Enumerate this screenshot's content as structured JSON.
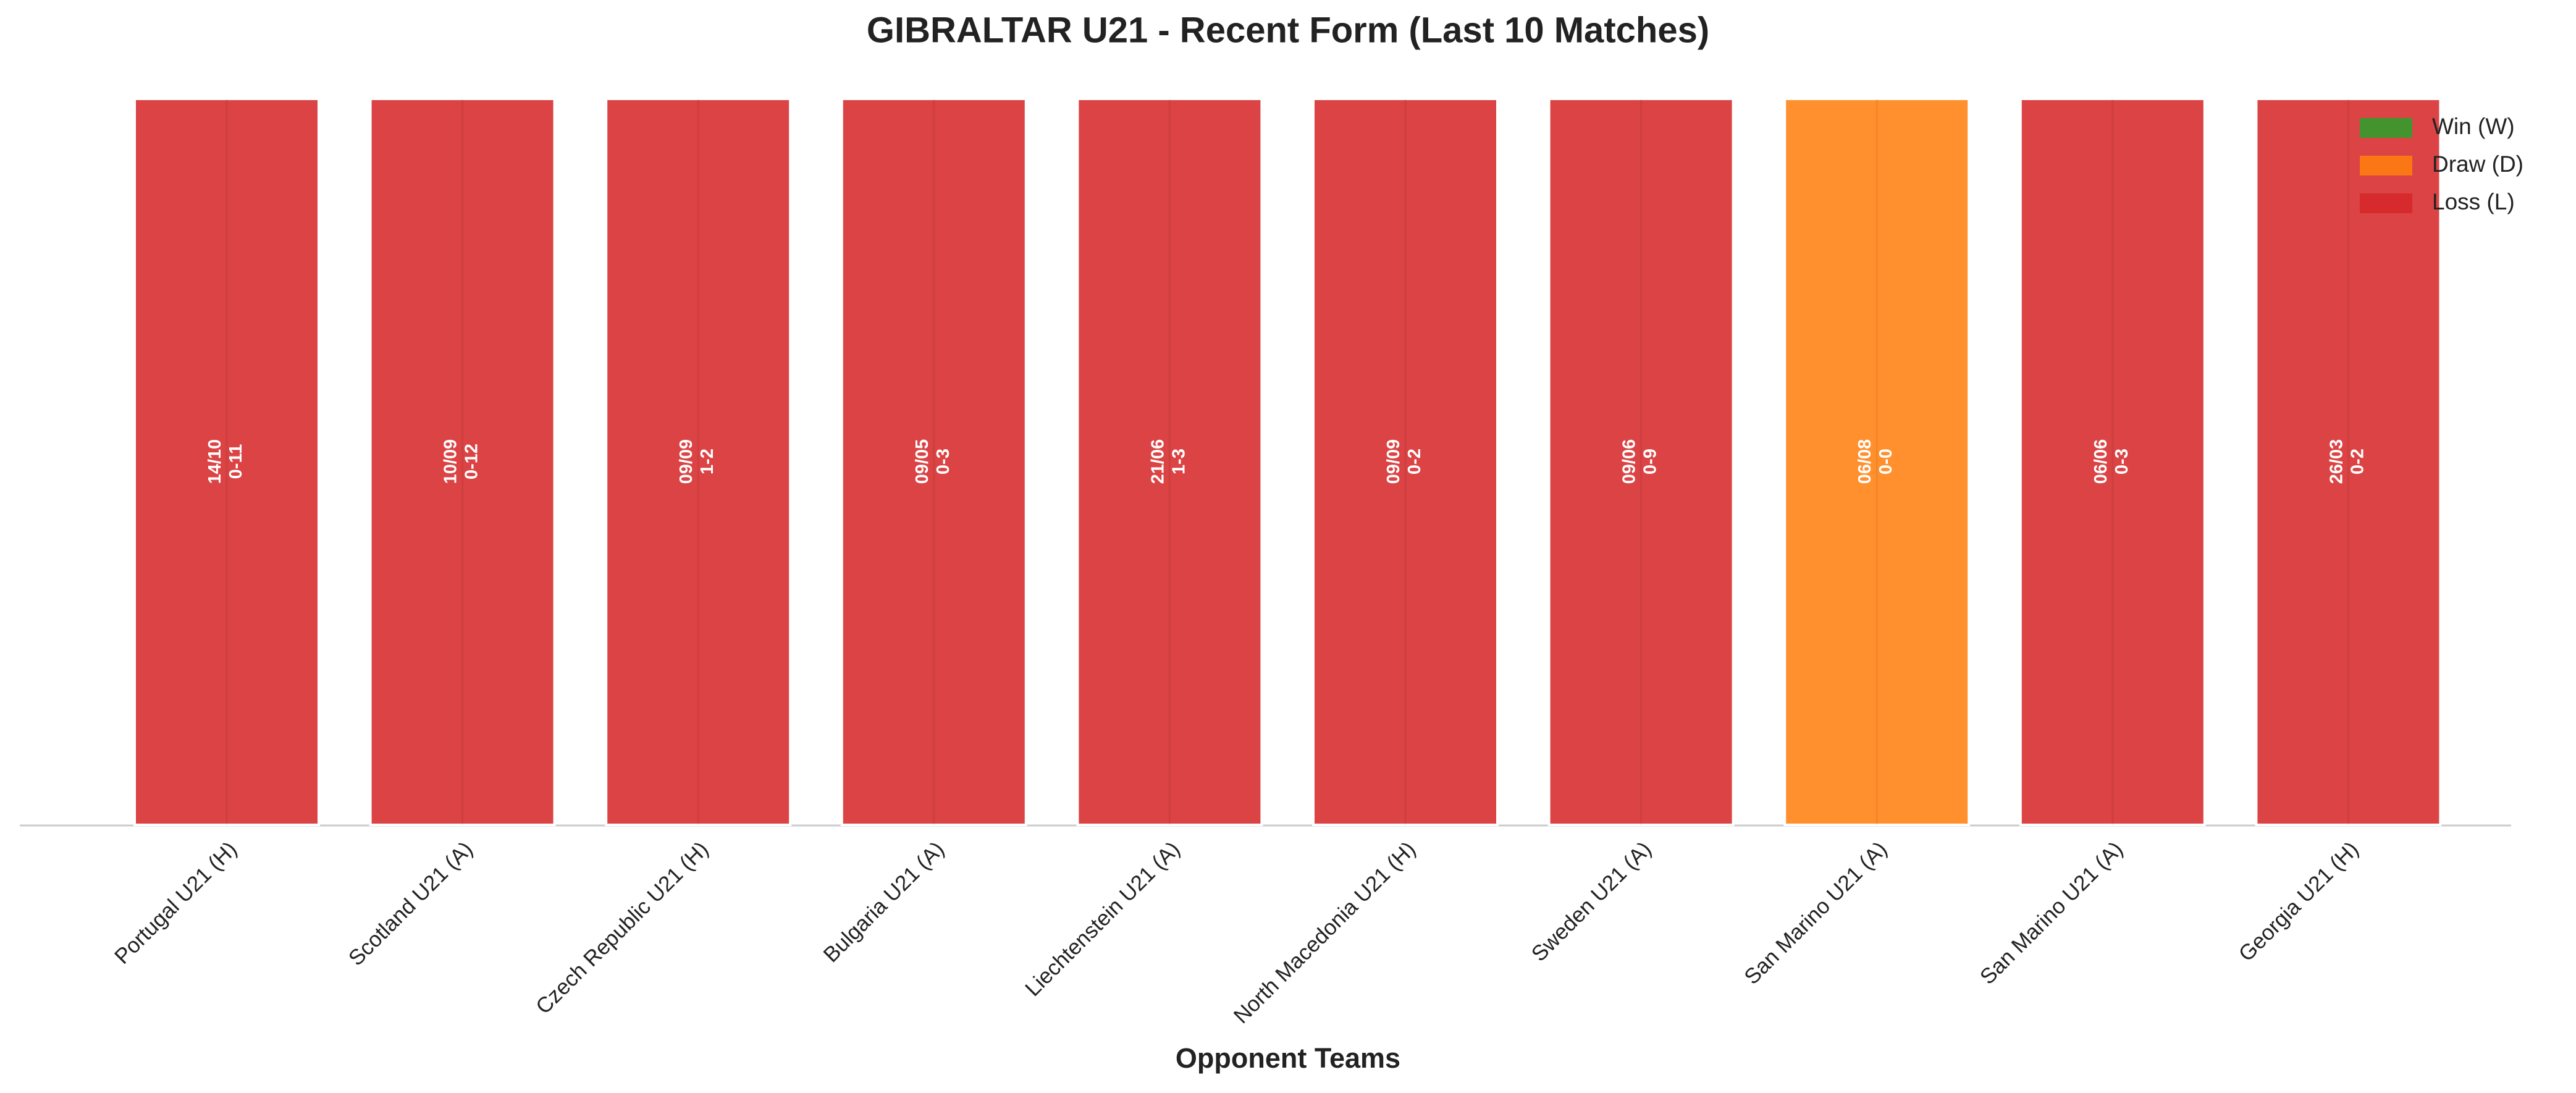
{
  "chart_data": {
    "type": "bar",
    "title": "GIBRALTAR U21 - Recent Form (Last 10 Matches)",
    "x_label": "Opponent Teams",
    "categories": [
      "Portugal U21 (H)",
      "Scotland U21 (A)",
      "Czech Republic U21 (H)",
      "Bulgaria U21 (A)",
      "Liechtenstein U21 (A)",
      "North Macedonia U21 (H)",
      "Sweden U21 (A)",
      "San Marino U21 (A)",
      "San Marino U21 (A)",
      "Georgia U21 (H)"
    ],
    "dates": [
      "14/10",
      "10/09",
      "09/09",
      "09/05",
      "21/06",
      "09/09",
      "09/06",
      "06/08",
      "06/06",
      "26/03"
    ],
    "scores": [
      "0-11",
      "0-12",
      "1-2",
      "0-3",
      "1-3",
      "0-2",
      "0-9",
      "0-0",
      "0-3",
      "0-2"
    ],
    "colors": [
      "#d62728",
      "#d62728",
      "#d62728",
      "#d62728",
      "#d62728",
      "#d62728",
      "#d62728",
      "#ff7f0e",
      "#d62728",
      "#d62728"
    ],
    "legend": [
      {
        "name": "Win (W)",
        "color": "#2ca02c"
      },
      {
        "name": "Draw (D)",
        "color": "#ff7f0e"
      },
      {
        "name": "Loss (L)",
        "color": "#d62728"
      }
    ],
    "legend_position": "upper right"
  }
}
